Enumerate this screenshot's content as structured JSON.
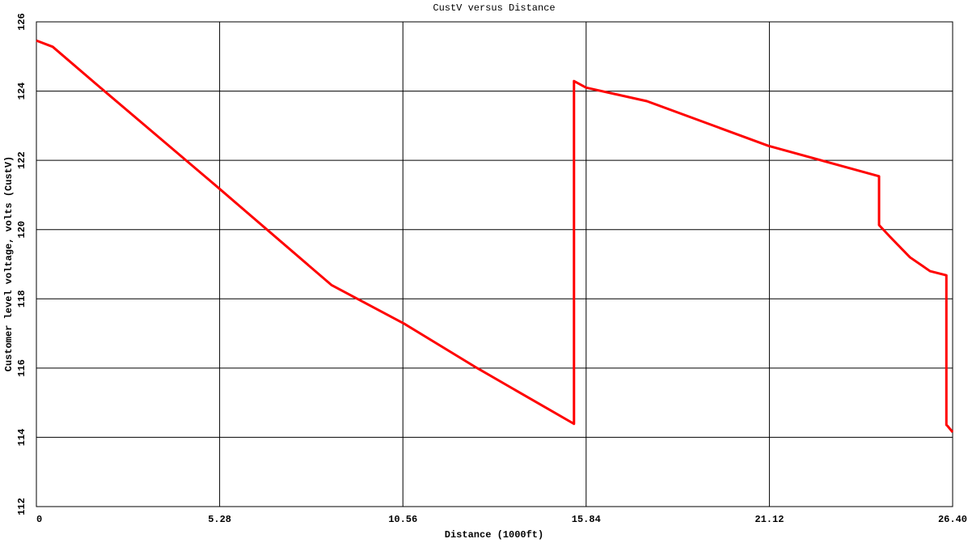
{
  "chart_data": {
    "type": "line",
    "title": "CustV versus Distance",
    "x_label": "Distance (1000ft)",
    "y_label": "Customer level voltage, volts  (CustV)",
    "x": [
      0,
      0.47,
      1.75,
      5.24,
      8.5,
      10.6,
      12.7,
      15.49,
      15.49,
      15.84,
      17.59,
      21.09,
      24.28,
      24.28,
      24.58,
      25.17,
      25.75,
      26.22,
      26.22,
      26.26,
      26.4
    ],
    "series": [
      {
        "name": "CustV",
        "color": "#ff0000",
        "values": [
          125.46,
          125.28,
          124.18,
          121.21,
          118.4,
          117.28,
          116.0,
          114.39,
          124.29,
          124.1,
          123.71,
          122.42,
          121.54,
          120.13,
          119.81,
          119.2,
          118.8,
          118.68,
          114.36,
          114.32,
          114.15
        ]
      }
    ],
    "xlim": [
      0,
      26.4
    ],
    "xticks": [
      0,
      5.28,
      10.56,
      15.84,
      21.12,
      {
        "value": 26.4,
        "label": "26.40"
      }
    ],
    "ylim": [
      112,
      126
    ],
    "yticks": [
      112,
      114,
      116,
      118,
      120,
      122,
      124,
      126
    ],
    "grid": true
  }
}
